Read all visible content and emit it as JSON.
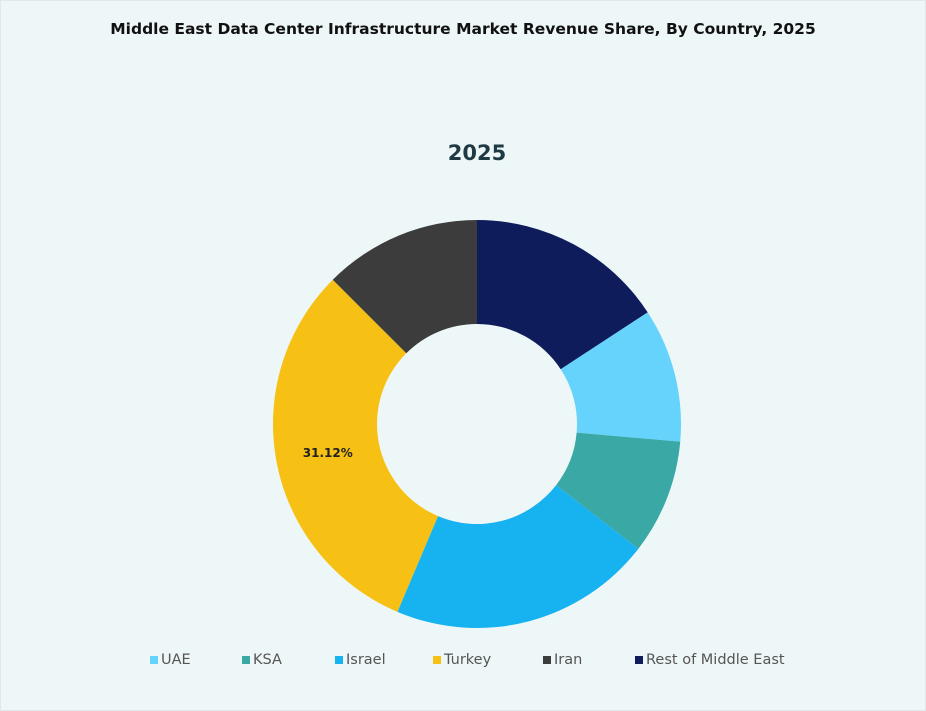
{
  "chart_data": {
    "type": "pie",
    "variant": "donut",
    "title": "Middle East Data Center Infrastructure  Market Revenue Share, By Country,  2025",
    "subtitle": "2025",
    "categories": [
      "UAE",
      "KSA",
      "Israel",
      "Turkey",
      "Iran",
      "Rest of Middle East"
    ],
    "values": [
      10.6,
      9.1,
      20.9,
      31.12,
      12.5,
      15.78
    ],
    "unit": "%",
    "data_labels": {
      "Turkey": "31.12%"
    },
    "colors": [
      "#66d3fc",
      "#3aa9a6",
      "#17b2f0",
      "#f6c114",
      "#3c3c3c",
      "#0e1c5c"
    ],
    "legend": "bottom"
  }
}
